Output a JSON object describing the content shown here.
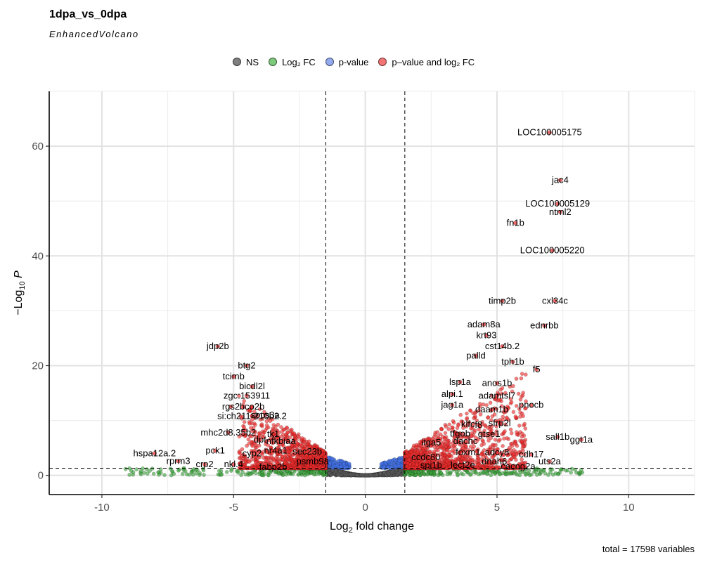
{
  "title": "1dpa_vs_0dpa",
  "subtitle": "EnhancedVolcano",
  "caption": "total = 17598 variables",
  "legend": [
    {
      "label": "NS",
      "color": "#7f7f7f"
    },
    {
      "label": "Log₂ FC",
      "color": "#4caf50"
    },
    {
      "label": "p-value",
      "color": "#6f8fe8"
    },
    {
      "label": "p–value and log₂ FC",
      "color": "#ee3b3b"
    }
  ],
  "chart_data": {
    "type": "scatter",
    "title": "1dpa_vs_0dpa",
    "subtitle": "EnhancedVolcano",
    "xlabel": "Log2 fold change",
    "ylabel": "-Log10 P",
    "xlim": [
      -12,
      12.5
    ],
    "ylim": [
      -3.5,
      70
    ],
    "xticks": [
      -10,
      -5,
      0,
      5,
      10
    ],
    "yticks": [
      0,
      20,
      40,
      60
    ],
    "x_tick_labels": [
      "-10",
      "-5",
      "0",
      "5",
      "10"
    ],
    "y_tick_labels": [
      "0",
      "20",
      "40",
      "60"
    ],
    "fc_cutoffs": [
      -1.5,
      1.5
    ],
    "p_cutoff_neglog10": 1.3,
    "grid": true,
    "legend_position": "top",
    "total_variables": 17598,
    "labeled_points": [
      {
        "name": "LOC100005175",
        "x": 7.0,
        "y": 62.5
      },
      {
        "name": "jac4",
        "x": 7.4,
        "y": 53.8
      },
      {
        "name": "LOC100005129",
        "x": 7.3,
        "y": 49.5
      },
      {
        "name": "ntml2",
        "x": 7.4,
        "y": 48.0
      },
      {
        "name": "fn1b",
        "x": 5.7,
        "y": 46.0
      },
      {
        "name": "LOC100005220",
        "x": 7.1,
        "y": 41.0
      },
      {
        "name": "timp2b",
        "x": 5.2,
        "y": 31.8
      },
      {
        "name": "cxl34c",
        "x": 7.2,
        "y": 31.8
      },
      {
        "name": "adam8a",
        "x": 4.5,
        "y": 27.5
      },
      {
        "name": "ednrbb",
        "x": 6.8,
        "y": 27.3
      },
      {
        "name": "krt93",
        "x": 4.6,
        "y": 25.5
      },
      {
        "name": "cst14b.2",
        "x": 5.2,
        "y": 23.5
      },
      {
        "name": "palld",
        "x": 4.2,
        "y": 21.8
      },
      {
        "name": "tph1b",
        "x": 5.6,
        "y": 20.7
      },
      {
        "name": "f5",
        "x": 6.5,
        "y": 19.3
      },
      {
        "name": "lsp1a",
        "x": 3.6,
        "y": 17.0
      },
      {
        "name": "anos1b",
        "x": 5.0,
        "y": 16.8
      },
      {
        "name": "alpi.1",
        "x": 3.3,
        "y": 14.8
      },
      {
        "name": "adamtsl7",
        "x": 5.0,
        "y": 14.5
      },
      {
        "name": "jag1a",
        "x": 3.3,
        "y": 12.8
      },
      {
        "name": "pnocb",
        "x": 6.3,
        "y": 12.8
      },
      {
        "name": "daam1b",
        "x": 4.8,
        "y": 12.0
      },
      {
        "name": "sfrp2l",
        "x": 5.1,
        "y": 9.5
      },
      {
        "name": "klfc",
        "x": 3.9,
        "y": 9.3
      },
      {
        "name": "f8",
        "x": 4.3,
        "y": 9.2
      },
      {
        "name": "tfgob",
        "x": 3.6,
        "y": 7.6
      },
      {
        "name": "gtse1",
        "x": 4.7,
        "y": 7.5
      },
      {
        "name": "itga5",
        "x": 2.5,
        "y": 6.0
      },
      {
        "name": "dachc",
        "x": 3.8,
        "y": 6.2
      },
      {
        "name": "sall1b",
        "x": 7.3,
        "y": 7.0
      },
      {
        "name": "ggt1a",
        "x": 8.2,
        "y": 6.5
      },
      {
        "name": "foxm1",
        "x": 3.9,
        "y": 4.2
      },
      {
        "name": "adcy8",
        "x": 5.0,
        "y": 4.2
      },
      {
        "name": "ccdc80",
        "x": 2.3,
        "y": 3.3
      },
      {
        "name": "cdh17",
        "x": 6.3,
        "y": 3.8
      },
      {
        "name": "spi1b",
        "x": 2.5,
        "y": 1.8
      },
      {
        "name": "lect2e",
        "x": 3.7,
        "y": 1.9
      },
      {
        "name": "dnah6",
        "x": 4.9,
        "y": 2.5
      },
      {
        "name": "uts2a",
        "x": 7.0,
        "y": 2.5
      },
      {
        "name": "cacng2a",
        "x": 5.8,
        "y": 1.6
      },
      {
        "name": "jdp2b",
        "x": -5.6,
        "y": 23.5
      },
      {
        "name": "btg2",
        "x": -4.5,
        "y": 20.0
      },
      {
        "name": "tcimb",
        "x": -5.0,
        "y": 18.0
      },
      {
        "name": "bicdl2l",
        "x": -4.3,
        "y": 16.2
      },
      {
        "name": "zgc:153911",
        "x": -4.5,
        "y": 14.5
      },
      {
        "name": "rgs2",
        "x": -5.1,
        "y": 12.5
      },
      {
        "name": "bco2b",
        "x": -4.3,
        "y": 12.5
      },
      {
        "name": "si:ch211-210b2.2",
        "x": -4.3,
        "y": 10.8
      },
      {
        "name": "socs3a",
        "x": -3.8,
        "y": 11.0
      },
      {
        "name": "mhc2d8.35b2",
        "x": -5.2,
        "y": 7.8
      },
      {
        "name": "tk1",
        "x": -3.5,
        "y": 7.5
      },
      {
        "name": "dpt",
        "x": -4.0,
        "y": 6.5
      },
      {
        "name": "nfkbiaa",
        "x": -3.2,
        "y": 6.2
      },
      {
        "name": "pck1",
        "x": -5.7,
        "y": 4.5
      },
      {
        "name": "cyp2",
        "x": -4.3,
        "y": 4.0
      },
      {
        "name": "nr4a1",
        "x": -3.4,
        "y": 4.5
      },
      {
        "name": "sec23b",
        "x": -2.2,
        "y": 4.3
      },
      {
        "name": "psmb9a",
        "x": -2.0,
        "y": 2.5
      },
      {
        "name": "hspa12a.2",
        "x": -8.0,
        "y": 4.0
      },
      {
        "name": "rprm3",
        "x": -7.1,
        "y": 2.6
      },
      {
        "name": "crp2",
        "x": -6.1,
        "y": 2.0
      },
      {
        "name": "nkl.4",
        "x": -5.0,
        "y": 2.0
      },
      {
        "name": "fabp2b",
        "x": -3.5,
        "y": 1.5
      }
    ]
  }
}
